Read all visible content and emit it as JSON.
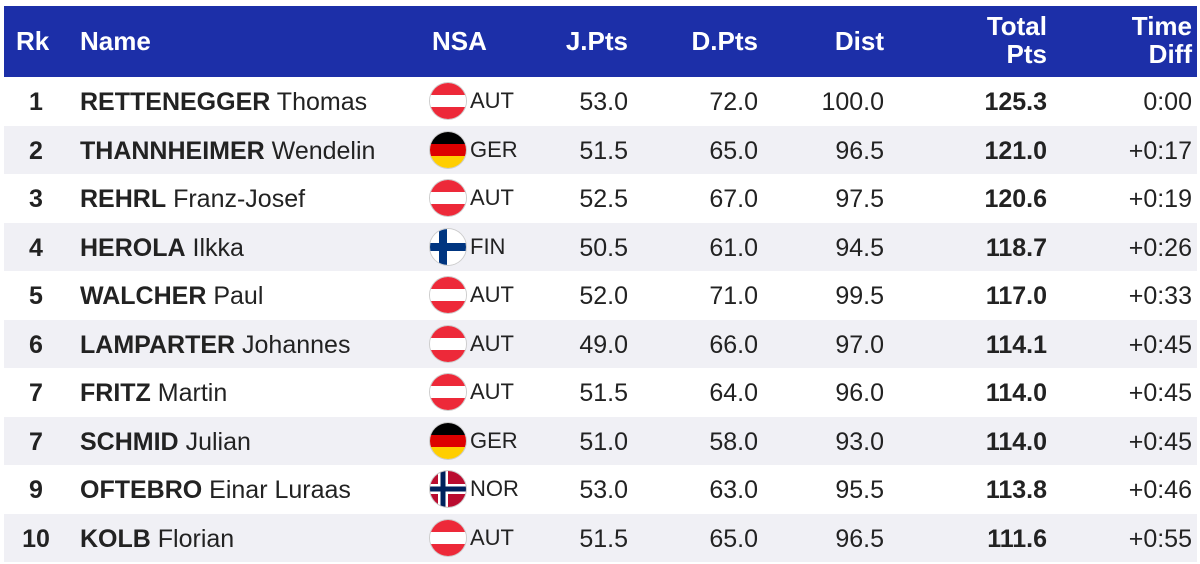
{
  "headers": {
    "rk": "Rk",
    "name": "Name",
    "nsa": "NSA",
    "jpts": "J.Pts",
    "dpts": "D.Pts",
    "dist": "Dist",
    "total_line1": "Total",
    "total_line2": "Pts",
    "time_line1": "Time",
    "time_line2": "Diff"
  },
  "colors": {
    "header_bg": "#1c2fa8",
    "row_alt_bg": "#f0f0f5"
  },
  "rows": [
    {
      "rk": "1",
      "last": "RETTENEGGER",
      "first": "Thomas",
      "nsa": "AUT",
      "flag": "austria-flag-icon",
      "jpts": "53.0",
      "dpts": "72.0",
      "dist": "100.0",
      "total": "125.3",
      "time": "0:00"
    },
    {
      "rk": "2",
      "last": "THANNHEIMER",
      "first": "Wendelin",
      "nsa": "GER",
      "flag": "germany-flag-icon",
      "jpts": "51.5",
      "dpts": "65.0",
      "dist": "96.5",
      "total": "121.0",
      "time": "+0:17"
    },
    {
      "rk": "3",
      "last": "REHRL",
      "first": "Franz-Josef",
      "nsa": "AUT",
      "flag": "austria-flag-icon",
      "jpts": "52.5",
      "dpts": "67.0",
      "dist": "97.5",
      "total": "120.6",
      "time": "+0:19"
    },
    {
      "rk": "4",
      "last": "HEROLA",
      "first": "Ilkka",
      "nsa": "FIN",
      "flag": "finland-flag-icon",
      "jpts": "50.5",
      "dpts": "61.0",
      "dist": "94.5",
      "total": "118.7",
      "time": "+0:26"
    },
    {
      "rk": "5",
      "last": "WALCHER",
      "first": "Paul",
      "nsa": "AUT",
      "flag": "austria-flag-icon",
      "jpts": "52.0",
      "dpts": "71.0",
      "dist": "99.5",
      "total": "117.0",
      "time": "+0:33"
    },
    {
      "rk": "6",
      "last": "LAMPARTER",
      "first": "Johannes",
      "nsa": "AUT",
      "flag": "austria-flag-icon",
      "jpts": "49.0",
      "dpts": "66.0",
      "dist": "97.0",
      "total": "114.1",
      "time": "+0:45"
    },
    {
      "rk": "7",
      "last": "FRITZ",
      "first": "Martin",
      "nsa": "AUT",
      "flag": "austria-flag-icon",
      "jpts": "51.5",
      "dpts": "64.0",
      "dist": "96.0",
      "total": "114.0",
      "time": "+0:45"
    },
    {
      "rk": "7",
      "last": "SCHMID",
      "first": "Julian",
      "nsa": "GER",
      "flag": "germany-flag-icon",
      "jpts": "51.0",
      "dpts": "58.0",
      "dist": "93.0",
      "total": "114.0",
      "time": "+0:45"
    },
    {
      "rk": "9",
      "last": "OFTEBRO",
      "first": "Einar Luraas",
      "nsa": "NOR",
      "flag": "norway-flag-icon",
      "jpts": "53.0",
      "dpts": "63.0",
      "dist": "95.5",
      "total": "113.8",
      "time": "+0:46"
    },
    {
      "rk": "10",
      "last": "KOLB",
      "first": "Florian",
      "nsa": "AUT",
      "flag": "austria-flag-icon",
      "jpts": "51.5",
      "dpts": "65.0",
      "dist": "96.5",
      "total": "111.6",
      "time": "+0:55"
    }
  ]
}
